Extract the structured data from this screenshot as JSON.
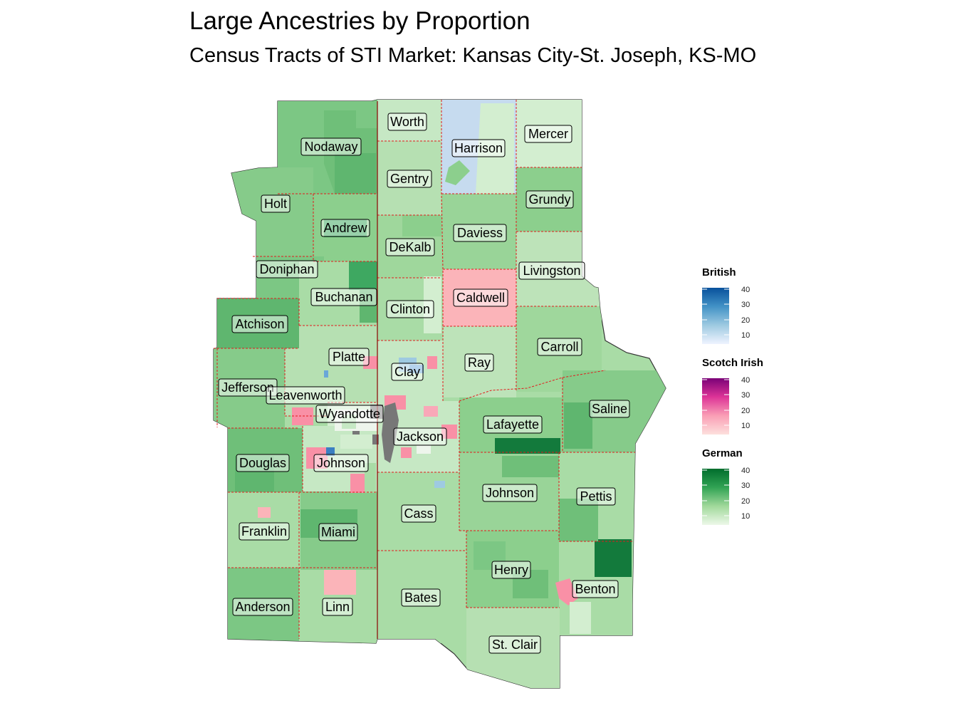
{
  "title": "Large Ancestries by Proportion",
  "subtitle": "Census Tracts of STI Market: Kansas City-St. Joseph, KS-MO",
  "counties": [
    {
      "name": "Worth",
      "fill": "#c6e8c4"
    },
    {
      "name": "Harrison",
      "fill": "#c6dbef"
    },
    {
      "name": "Mercer",
      "fill": "#d3eed0"
    },
    {
      "name": "Nodaway",
      "fill": "#7cc784"
    },
    {
      "name": "Gentry",
      "fill": "#b6e0b2"
    },
    {
      "name": "Grundy",
      "fill": "#8ccf8d"
    },
    {
      "name": "Holt",
      "fill": "#86cb8a"
    },
    {
      "name": "Andrew",
      "fill": "#8ccf8d"
    },
    {
      "name": "DeKalb",
      "fill": "#9fd79c"
    },
    {
      "name": "Daviess",
      "fill": "#99d498"
    },
    {
      "name": "Doniphan",
      "fill": "#7cc784"
    },
    {
      "name": "Livingston",
      "fill": "#bde3b9"
    },
    {
      "name": "Buchanan",
      "fill": "#a9dca6"
    },
    {
      "name": "Clinton",
      "fill": "#a9dca6"
    },
    {
      "name": "Caldwell",
      "fill": "#fbb4b9"
    },
    {
      "name": "Atchison",
      "fill": "#5fb66f"
    },
    {
      "name": "Carroll",
      "fill": "#9fd79c"
    },
    {
      "name": "Platte",
      "fill": "#b6e0b2"
    },
    {
      "name": "Ray",
      "fill": "#bde3b9"
    },
    {
      "name": "Clay",
      "fill": "#c6e8c4"
    },
    {
      "name": "Jefferson",
      "fill": "#86cb8a"
    },
    {
      "name": "Leavenworth",
      "fill": "#b6e0b2"
    },
    {
      "name": "Saline",
      "fill": "#86cb8a"
    },
    {
      "name": "Wyandotte",
      "fill": "#d3eed0"
    },
    {
      "name": "Lafayette",
      "fill": "#8ccf8d"
    },
    {
      "name": "Jackson",
      "fill": "#c6e8c4"
    },
    {
      "name": "Douglas",
      "fill": "#6fbf79"
    },
    {
      "name": "Johnson",
      "fill": "#c6e8c4"
    },
    {
      "name": "Johnson",
      "fill": "#99d498"
    },
    {
      "name": "Pettis",
      "fill": "#a9dca6"
    },
    {
      "name": "Cass",
      "fill": "#a9dca6"
    },
    {
      "name": "Franklin",
      "fill": "#a9dca6"
    },
    {
      "name": "Miami",
      "fill": "#86cb8a"
    },
    {
      "name": "Henry",
      "fill": "#8ccf8d"
    },
    {
      "name": "Benton",
      "fill": "#a9dca6"
    },
    {
      "name": "Bates",
      "fill": "#a9dca6"
    },
    {
      "name": "Anderson",
      "fill": "#7cc784"
    },
    {
      "name": "Linn",
      "fill": "#a9dca6"
    },
    {
      "name": "St. Clair",
      "fill": "#b6e0b2"
    }
  ],
  "legends": [
    {
      "title": "British",
      "ticks": [
        "40",
        "30",
        "20",
        "10"
      ],
      "colors": [
        "#08519c",
        "#4292c6",
        "#9ecae1",
        "#eff3ff"
      ]
    },
    {
      "title": "Scotch Irish",
      "ticks": [
        "40",
        "30",
        "20",
        "10"
      ],
      "colors": [
        "#7a0177",
        "#dd3497",
        "#fa9fb5",
        "#fde0dd"
      ]
    },
    {
      "title": "German",
      "ticks": [
        "40",
        "30",
        "20",
        "10"
      ],
      "colors": [
        "#006d2c",
        "#31a354",
        "#a1d99b",
        "#edf8e9"
      ]
    }
  ],
  "colors": {
    "county_border": "#e31a1c",
    "metro_gray": "#777777",
    "pink": "#f990a6",
    "blue": "#6aa7d8"
  }
}
